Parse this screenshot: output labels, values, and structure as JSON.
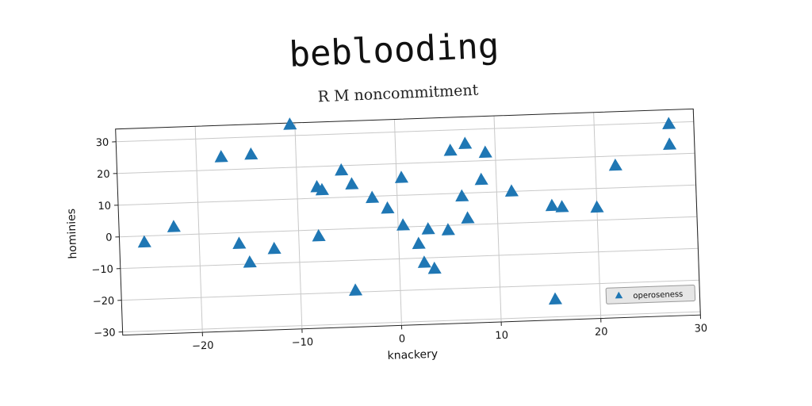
{
  "chart_data": {
    "type": "scatter",
    "title": "beblooding",
    "subtitle": "R M noncommitment",
    "xlabel": "knackery",
    "ylabel": "hominies",
    "xlim": [
      -28,
      30
    ],
    "ylim": [
      -31,
      34
    ],
    "xticks": [
      -20,
      -10,
      0,
      10,
      20,
      30
    ],
    "yticks": [
      -30,
      -20,
      -10,
      0,
      10,
      20,
      30
    ],
    "grid": true,
    "legend_position": "lower-right",
    "series": [
      {
        "name": "operoseness",
        "color": "#1f77b4",
        "marker": "triangle",
        "points": [
          {
            "x": -25.5,
            "y": -2
          },
          {
            "x": -22.5,
            "y": 2.5
          },
          {
            "x": -17.5,
            "y": 24
          },
          {
            "x": -16,
            "y": -3.5
          },
          {
            "x": -15,
            "y": -9.5
          },
          {
            "x": -14.5,
            "y": 24.5
          },
          {
            "x": -12.5,
            "y": -5.5
          },
          {
            "x": -10.5,
            "y": 33.5
          },
          {
            "x": -8,
            "y": -2
          },
          {
            "x": -8,
            "y": 13.5
          },
          {
            "x": -7.5,
            "y": 12.5
          },
          {
            "x": -5.5,
            "y": 18.5
          },
          {
            "x": -4.5,
            "y": -19.5
          },
          {
            "x": -4.5,
            "y": 14
          },
          {
            "x": -2.5,
            "y": 9.5
          },
          {
            "x": -1,
            "y": 6
          },
          {
            "x": 0.5,
            "y": 0.5
          },
          {
            "x": 0.5,
            "y": 15.5
          },
          {
            "x": 2,
            "y": -5.5
          },
          {
            "x": 2.5,
            "y": -11.5
          },
          {
            "x": 3,
            "y": -1
          },
          {
            "x": 3.5,
            "y": -13.5
          },
          {
            "x": 5,
            "y": -1.5
          },
          {
            "x": 5.5,
            "y": 23.5
          },
          {
            "x": 6.5,
            "y": 9
          },
          {
            "x": 7,
            "y": 25.5
          },
          {
            "x": 7,
            "y": 2
          },
          {
            "x": 8.5,
            "y": 14
          },
          {
            "x": 9,
            "y": 22.5
          },
          {
            "x": 11.5,
            "y": 10
          },
          {
            "x": 15.5,
            "y": -24.5
          },
          {
            "x": 15.5,
            "y": 5
          },
          {
            "x": 16.5,
            "y": 4.5
          },
          {
            "x": 20,
            "y": 4
          },
          {
            "x": 22,
            "y": 17
          },
          {
            "x": 27.5,
            "y": 29.5
          },
          {
            "x": 27.5,
            "y": 23
          }
        ]
      }
    ]
  }
}
